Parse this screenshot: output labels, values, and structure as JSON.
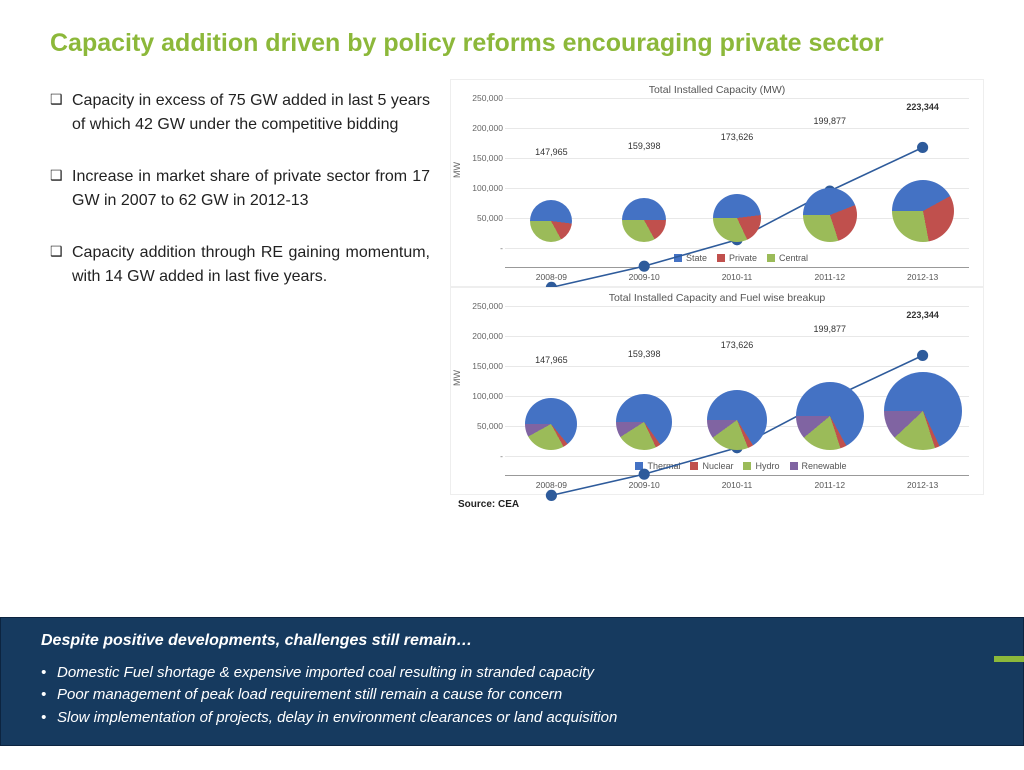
{
  "title": "Capacity addition driven by policy reforms encouraging private sector",
  "title_color": "#8cb83a",
  "bullets": [
    "Capacity in excess of 75 GW added in last 5 years of which 42 GW under the competitive bidding",
    "Increase in market share of private sector from 17 GW in 2007 to 62 GW in 2012-13",
    "Capacity addition through RE gaining momentum, with 14 GW added in last five years."
  ],
  "chart1": {
    "title": "Total Installed Capacity (MW)",
    "ylabel": "MW",
    "ylim": [
      0,
      250000
    ],
    "ytick_step": 50000,
    "categories": [
      "2008-09",
      "2009-10",
      "2010-11",
      "2011-12",
      "2012-13"
    ],
    "line_values": [
      147965,
      159398,
      173626,
      199877,
      223344
    ],
    "line_color": "#2e5b9b",
    "data_labels": [
      "147,965",
      "159,398",
      "173,626",
      "199,877",
      "223,344"
    ],
    "grid_color": "#e8e8e8",
    "legend": [
      {
        "name": "State",
        "color": "#4472c4"
      },
      {
        "name": "Private",
        "color": "#c0504d"
      },
      {
        "name": "Central",
        "color": "#9bbb59"
      }
    ],
    "pies": [
      {
        "size": 42,
        "segments": [
          {
            "c": "#4472c4",
            "f": 0.52
          },
          {
            "c": "#c0504d",
            "f": 0.15
          },
          {
            "c": "#9bbb59",
            "f": 0.33
          }
        ]
      },
      {
        "size": 44,
        "segments": [
          {
            "c": "#4472c4",
            "f": 0.5
          },
          {
            "c": "#c0504d",
            "f": 0.17
          },
          {
            "c": "#9bbb59",
            "f": 0.33
          }
        ]
      },
      {
        "size": 48,
        "segments": [
          {
            "c": "#4472c4",
            "f": 0.48
          },
          {
            "c": "#c0504d",
            "f": 0.2
          },
          {
            "c": "#9bbb59",
            "f": 0.32
          }
        ]
      },
      {
        "size": 54,
        "segments": [
          {
            "c": "#4472c4",
            "f": 0.44
          },
          {
            "c": "#c0504d",
            "f": 0.26
          },
          {
            "c": "#9bbb59",
            "f": 0.3
          }
        ]
      },
      {
        "size": 62,
        "segments": [
          {
            "c": "#4472c4",
            "f": 0.42
          },
          {
            "c": "#c0504d",
            "f": 0.3
          },
          {
            "c": "#9bbb59",
            "f": 0.28
          }
        ]
      }
    ]
  },
  "chart2": {
    "title": "Total Installed Capacity and Fuel wise breakup",
    "ylabel": "MW",
    "ylim": [
      0,
      250000
    ],
    "ytick_step": 50000,
    "categories": [
      "2008-09",
      "2009-10",
      "2010-11",
      "2011-12",
      "2012-13"
    ],
    "line_values": [
      147965,
      159398,
      173626,
      199877,
      223344
    ],
    "line_color": "#2e5b9b",
    "data_labels": [
      "147,965",
      "159,398",
      "173,626",
      "199,877",
      "223,344"
    ],
    "grid_color": "#e8e8e8",
    "legend": [
      {
        "name": "Thermal",
        "color": "#4472c4"
      },
      {
        "name": "Nuclear",
        "color": "#c0504d"
      },
      {
        "name": "Hydro",
        "color": "#9bbb59"
      },
      {
        "name": "Renewable",
        "color": "#8064a2"
      }
    ],
    "pies": [
      {
        "size": 52,
        "segments": [
          {
            "c": "#4472c4",
            "f": 0.64
          },
          {
            "c": "#c0504d",
            "f": 0.03
          },
          {
            "c": "#9bbb59",
            "f": 0.25
          },
          {
            "c": "#8064a2",
            "f": 0.08
          }
        ]
      },
      {
        "size": 56,
        "segments": [
          {
            "c": "#4472c4",
            "f": 0.65
          },
          {
            "c": "#c0504d",
            "f": 0.03
          },
          {
            "c": "#9bbb59",
            "f": 0.23
          },
          {
            "c": "#8064a2",
            "f": 0.09
          }
        ]
      },
      {
        "size": 60,
        "segments": [
          {
            "c": "#4472c4",
            "f": 0.66
          },
          {
            "c": "#c0504d",
            "f": 0.03
          },
          {
            "c": "#9bbb59",
            "f": 0.21
          },
          {
            "c": "#8064a2",
            "f": 0.1
          }
        ]
      },
      {
        "size": 68,
        "segments": [
          {
            "c": "#4472c4",
            "f": 0.67
          },
          {
            "c": "#c0504d",
            "f": 0.03
          },
          {
            "c": "#9bbb59",
            "f": 0.19
          },
          {
            "c": "#8064a2",
            "f": 0.11
          }
        ]
      },
      {
        "size": 78,
        "segments": [
          {
            "c": "#4472c4",
            "f": 0.68
          },
          {
            "c": "#c0504d",
            "f": 0.02
          },
          {
            "c": "#9bbb59",
            "f": 0.18
          },
          {
            "c": "#8064a2",
            "f": 0.12
          }
        ]
      }
    ]
  },
  "source_label": "Source: CEA",
  "callout": {
    "bg": "#163a5f",
    "title": "Despite positive developments, challenges still remain…",
    "bullets": [
      "Domestic Fuel shortage & expensive imported coal resulting in stranded capacity",
      "Poor management of peak load requirement still remain a cause for concern",
      "Slow implementation of projects, delay in environment clearances or land acquisition"
    ]
  }
}
